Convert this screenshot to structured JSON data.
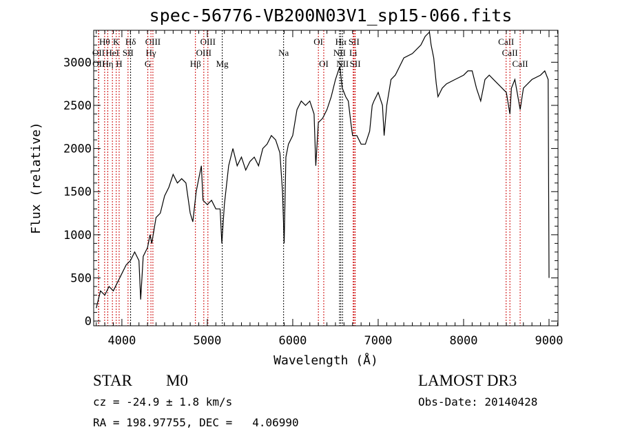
{
  "chart_data": {
    "type": "line",
    "title": "spec-56776-VB200N03V1_sp15-066.fits",
    "xlabel": "Wavelength (Å)",
    "ylabel": "Flux (relative)",
    "xlim": [
      3670,
      9105
    ],
    "ylim": [
      -55,
      3370
    ],
    "xticks": [
      4000,
      5000,
      6000,
      7000,
      8000,
      9000
    ],
    "yticks": [
      0,
      500,
      1000,
      1500,
      2000,
      2500,
      3000
    ],
    "grid": false,
    "series": [
      {
        "name": "spectrum",
        "x": [
          3700,
          3750,
          3800,
          3850,
          3900,
          3950,
          4000,
          4050,
          4100,
          4150,
          4200,
          4220,
          4250,
          4300,
          4330,
          4350,
          4400,
          4450,
          4500,
          4550,
          4600,
          4650,
          4700,
          4750,
          4800,
          4830,
          4870,
          4900,
          4930,
          4950,
          5000,
          5050,
          5100,
          5150,
          5170,
          5200,
          5250,
          5300,
          5350,
          5400,
          5450,
          5500,
          5550,
          5600,
          5650,
          5700,
          5750,
          5800,
          5850,
          5880,
          5900,
          5920,
          5950,
          6000,
          6050,
          6100,
          6150,
          6200,
          6250,
          6270,
          6300,
          6350,
          6400,
          6450,
          6500,
          6550,
          6580,
          6620,
          6650,
          6680,
          6700,
          6750,
          6800,
          6850,
          6900,
          6930,
          6950,
          7000,
          7050,
          7070,
          7100,
          7150,
          7200,
          7300,
          7400,
          7500,
          7550,
          7600,
          7620,
          7650,
          7680,
          7700,
          7750,
          7800,
          7900,
          8000,
          8050,
          8100,
          8150,
          8200,
          8250,
          8300,
          8350,
          8400,
          8450,
          8500,
          8542,
          8560,
          8600,
          8662,
          8700,
          8800,
          8900,
          8950,
          8990,
          9000
        ],
        "y": [
          150,
          350,
          300,
          400,
          350,
          450,
          550,
          650,
          700,
          800,
          700,
          250,
          750,
          850,
          1000,
          900,
          1200,
          1250,
          1450,
          1550,
          1700,
          1600,
          1650,
          1600,
          1250,
          1150,
          1500,
          1650,
          1800,
          1400,
          1350,
          1400,
          1300,
          1300,
          900,
          1350,
          1800,
          2000,
          1800,
          1900,
          1750,
          1850,
          1900,
          1800,
          2000,
          2050,
          2150,
          2100,
          1950,
          1500,
          900,
          1900,
          2050,
          2150,
          2450,
          2550,
          2500,
          2550,
          2400,
          1800,
          2300,
          2350,
          2450,
          2600,
          2800,
          2950,
          2700,
          2600,
          2550,
          2300,
          2150,
          2150,
          2050,
          2050,
          2200,
          2500,
          2550,
          2650,
          2500,
          2150,
          2500,
          2800,
          2850,
          3050,
          3100,
          3200,
          3300,
          3350,
          3200,
          3050,
          2750,
          2600,
          2700,
          2750,
          2800,
          2850,
          2900,
          2900,
          2700,
          2550,
          2800,
          2850,
          2800,
          2750,
          2700,
          2650,
          2400,
          2700,
          2800,
          2450,
          2700,
          2800,
          2850,
          2900,
          2800,
          500
        ]
      }
    ],
    "lines": [
      {
        "label": "Hθ",
        "wave": 3798,
        "row": 1,
        "color": "#cc0000"
      },
      {
        "label": "K",
        "wave": 3934,
        "row": 1,
        "color": "#cc0000"
      },
      {
        "label": "Hδ",
        "wave": 4102,
        "row": 1,
        "color": "#000000"
      },
      {
        "label": "OIII",
        "wave": 4363,
        "row": 1,
        "color": "#cc0000"
      },
      {
        "label": "OIII",
        "wave": 5007,
        "row": 1,
        "color": "#cc0000"
      },
      {
        "label": "OI",
        "wave": 6300,
        "row": 1,
        "color": "#cc0000"
      },
      {
        "label": "Hα",
        "wave": 6563,
        "row": 1,
        "color": "#000000"
      },
      {
        "label": "SII",
        "wave": 6717,
        "row": 1,
        "color": "#cc0000"
      },
      {
        "label": "CaII",
        "wave": 8498,
        "row": 1,
        "color": "#cc0000"
      },
      {
        "label": "OII",
        "wave": 3727,
        "row": 2,
        "color": "#cc0000"
      },
      {
        "label": "HeI",
        "wave": 3889,
        "row": 2,
        "color": "#cc0000"
      },
      {
        "label": "SII",
        "wave": 4072,
        "row": 2,
        "color": "#cc0000"
      },
      {
        "label": "Hγ",
        "wave": 4340,
        "row": 2,
        "color": "#cc0000"
      },
      {
        "label": "OIII",
        "wave": 4959,
        "row": 2,
        "color": "#cc0000"
      },
      {
        "label": "Na",
        "wave": 5893,
        "row": 2,
        "color": "#000000"
      },
      {
        "label": "NII",
        "wave": 6548,
        "row": 2,
        "color": "#000000"
      },
      {
        "label": "Li",
        "wave": 6708,
        "row": 2,
        "color": "#cc0000"
      },
      {
        "label": "CaII",
        "wave": 8542,
        "row": 2,
        "color": "#cc0000"
      },
      {
        "label": "OII",
        "wave": 3729,
        "row": 3,
        "color": "#cc0000"
      },
      {
        "label": "Hη",
        "wave": 3835,
        "row": 3,
        "color": "#cc0000"
      },
      {
        "label": "H",
        "wave": 3968,
        "row": 3,
        "color": "#cc0000"
      },
      {
        "label": "G",
        "wave": 4304,
        "row": 3,
        "color": "#cc0000"
      },
      {
        "label": "Hβ",
        "wave": 4861,
        "row": 3,
        "color": "#cc0000"
      },
      {
        "label": "Mg",
        "wave": 5175,
        "row": 3,
        "color": "#000000"
      },
      {
        "label": "OI",
        "wave": 6363,
        "row": 3,
        "color": "#cc0000"
      },
      {
        "label": "NII",
        "wave": 6583,
        "row": 3,
        "color": "#000000"
      },
      {
        "label": "SII",
        "wave": 6731,
        "row": 3,
        "color": "#cc0000"
      },
      {
        "label": "CaII",
        "wave": 8662,
        "row": 3,
        "color": "#cc0000"
      }
    ]
  },
  "info": {
    "class": "STAR",
    "subclass": "M0",
    "survey": "LAMOST DR3",
    "cz": "cz = -24.9 ± 1.8 km/s",
    "obs_date": "Obs-Date: 20140428",
    "radec": "RA = 198.97755, DEC =   4.06990"
  }
}
